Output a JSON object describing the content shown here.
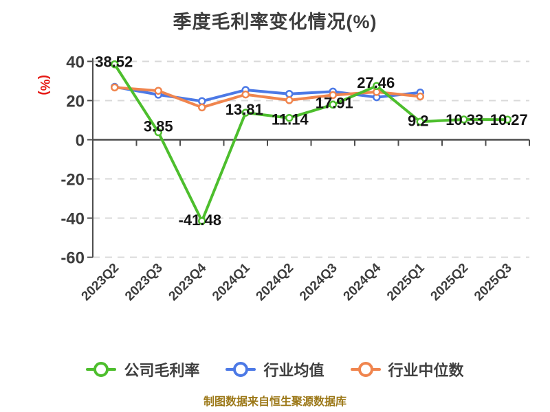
{
  "chart_data": {
    "type": "line",
    "title": "季度毛利率变化情况(%)",
    "ylabel": "(%)",
    "ylabel_color": "#e51a15",
    "axis_text_color": "#3d3d3d",
    "label_text_color": "#141414",
    "grid": "horizontal dashed",
    "legend_position": "bottom",
    "categories": [
      "2023Q2",
      "2023Q3",
      "2023Q4",
      "2024Q1",
      "2024Q2",
      "2024Q3",
      "2024Q4",
      "2025Q1",
      "2025Q2",
      "2025Q3"
    ],
    "yticks": [
      40,
      20,
      0,
      -20,
      -40,
      -60
    ],
    "ylim": [
      -60,
      40
    ],
    "series": [
      {
        "name": "公司毛利率",
        "color": "#4dbe2d",
        "values": [
          38.52,
          3.85,
          -41.48,
          13.81,
          11.14,
          17.91,
          27.46,
          9.2,
          10.33,
          10.27
        ],
        "labels_shown": true
      },
      {
        "name": "行业均值",
        "color": "#4c79e6",
        "values": [
          27,
          23,
          19.7,
          25.4,
          23.4,
          24.6,
          21.7,
          24.1
        ],
        "labels_shown": false
      },
      {
        "name": "行业中位数",
        "color": "#f0854e",
        "values": [
          26.7,
          25,
          16.5,
          23.1,
          20.2,
          22.8,
          24.4,
          22.1
        ],
        "labels_shown": false
      }
    ]
  },
  "legend": {
    "items": [
      {
        "label": "公司毛利率"
      },
      {
        "label": "行业均值"
      },
      {
        "label": "行业中位数"
      }
    ]
  },
  "footer": {
    "text": "制图数据来自恒生聚源数据库",
    "color": "#9c7818"
  }
}
